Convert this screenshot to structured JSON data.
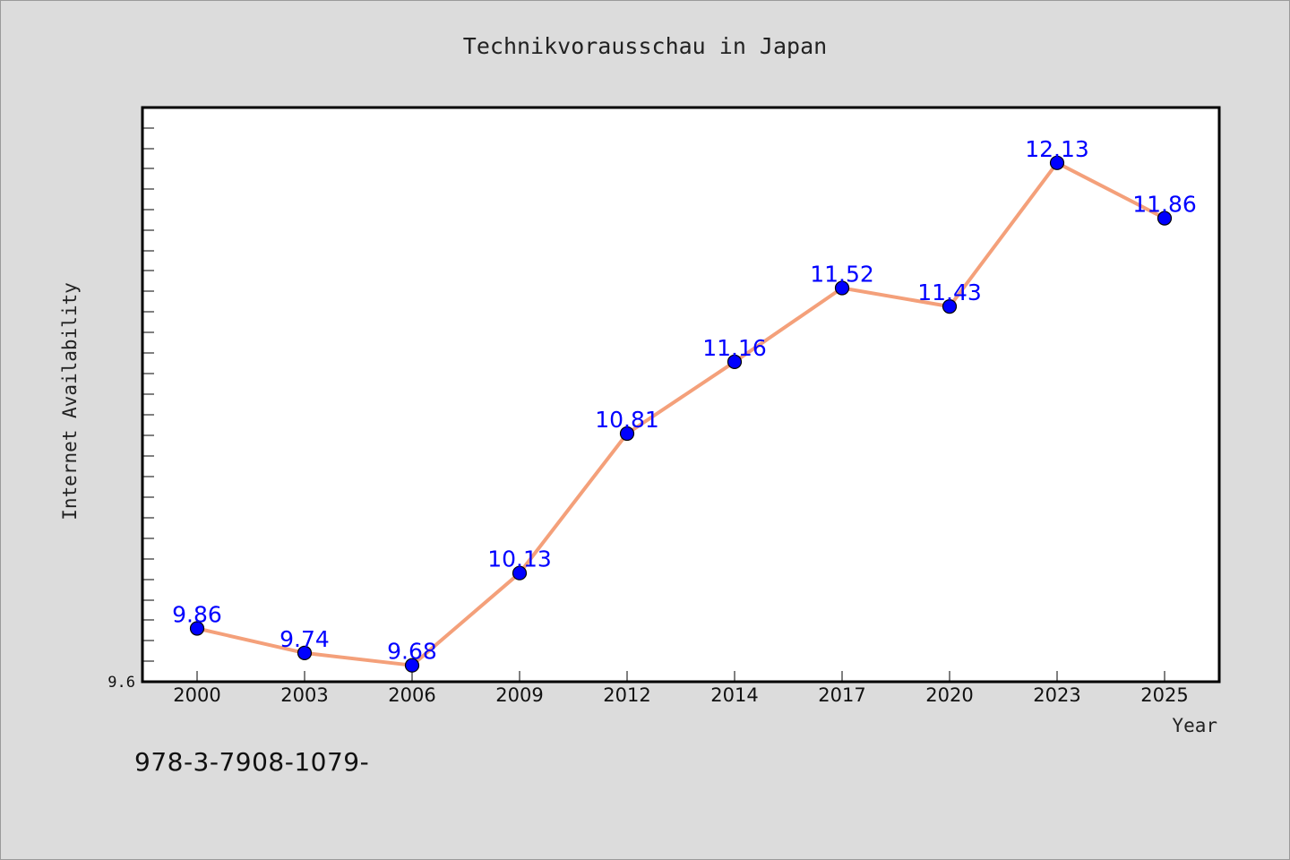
{
  "chart_data": {
    "type": "line",
    "title": "Technikvorausschau in Japan",
    "xlabel": "Year",
    "ylabel": "Internet Availability",
    "categories": [
      "2000",
      "2003",
      "2006",
      "2009",
      "2012",
      "2014",
      "2017",
      "2020",
      "2023",
      "2025"
    ],
    "series": [
      {
        "values": [
          9.86,
          9.74,
          9.68,
          10.13,
          10.81,
          11.16,
          11.52,
          11.43,
          12.13,
          11.86
        ]
      }
    ],
    "data_labels": [
      "9.86",
      "9.74",
      "9.68",
      "10.13",
      "10.81",
      "11.16",
      "11.52",
      "11.43",
      "12.13",
      "11.86"
    ],
    "y_tick_labels": [
      "9.6"
    ],
    "ylim": [
      9.6,
      12.4
    ],
    "grid": false,
    "line_color": "#f4a07a",
    "marker_color": "#0000ff",
    "label_color": "#0000ff"
  },
  "footer": {
    "code_text": "978-3-7908-1079-"
  }
}
